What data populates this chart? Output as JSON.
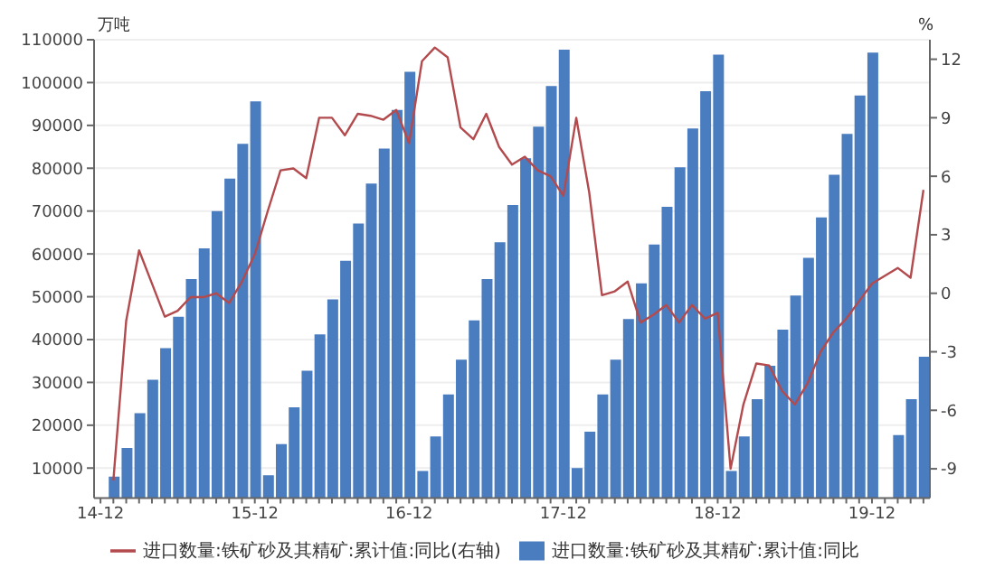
{
  "chart_data": {
    "type": "bar",
    "ylabel": "万吨",
    "y2label": "%",
    "categories": [
      "14-12",
      null,
      null,
      null,
      null,
      null,
      null,
      null,
      null,
      null,
      null,
      null,
      "15-12",
      null,
      null,
      null,
      null,
      null,
      null,
      null,
      null,
      null,
      null,
      null,
      "16-12",
      null,
      null,
      null,
      null,
      null,
      null,
      null,
      null,
      null,
      null,
      null,
      "17-12",
      null,
      null,
      null,
      null,
      null,
      null,
      null,
      null,
      null,
      null,
      null,
      "18-12",
      null,
      null,
      null,
      null,
      null,
      null,
      null,
      null,
      null,
      null,
      null,
      "19-12",
      null,
      null,
      null,
      null
    ],
    "series": [
      {
        "name": "进口数量:铁矿砂及其精矿:累计值:同比(右轴)",
        "type": "line",
        "axis": "y2",
        "color": "#b34a4d",
        "values": [
          null,
          -9.6,
          -1.4,
          2.2,
          0.5,
          -1.2,
          -0.9,
          -0.2,
          -0.2,
          0.0,
          -0.5,
          0.6,
          2.0,
          4.2,
          6.3,
          6.4,
          5.9,
          9.0,
          9.0,
          8.1,
          9.2,
          9.1,
          8.9,
          9.4,
          7.7,
          11.9,
          12.6,
          12.1,
          8.5,
          7.9,
          9.2,
          7.5,
          6.6,
          7.0,
          6.3,
          6.0,
          5.0,
          9.0,
          5.2,
          -0.1,
          0.1,
          0.6,
          -1.5,
          -1.1,
          -0.6,
          -1.5,
          -0.6,
          -1.3,
          -1.0,
          -9.0,
          -5.7,
          -3.6,
          -3.7,
          -5.0,
          -5.7,
          -4.6,
          -3.0,
          -2.0,
          -1.3,
          -0.4,
          0.5,
          null,
          1.3,
          0.8,
          5.3
        ]
      },
      {
        "name": "进口数量:铁矿砂及其精矿:累计值:同比",
        "color": "#4a7dc0",
        "values": [
          null,
          8000,
          14700,
          22800,
          30600,
          38000,
          45300,
          54100,
          61300,
          70000,
          77600,
          85700,
          95600,
          8300,
          15600,
          24200,
          32700,
          41200,
          49400,
          58400,
          67100,
          76400,
          84600,
          93600,
          102500,
          9300,
          17400,
          27200,
          35300,
          44500,
          54100,
          62700,
          71400,
          82300,
          89700,
          99200,
          107700,
          10000,
          18500,
          27200,
          35300,
          44800,
          53100,
          62200,
          71000,
          80200,
          89300,
          98000,
          106500,
          9300,
          17400,
          26100,
          33900,
          42300,
          50300,
          59100,
          68500,
          78500,
          88000,
          97000,
          107000,
          null,
          17700,
          26100,
          36000
        ]
      }
    ],
    "ylim": [
      3000,
      110000
    ],
    "yticks": [
      10000,
      20000,
      30000,
      40000,
      50000,
      60000,
      70000,
      80000,
      90000,
      100000,
      110000
    ],
    "y2lim": [
      -10.5,
      13
    ],
    "y2ticks": [
      -9,
      -6,
      -3,
      0,
      3,
      6,
      9,
      12
    ],
    "grid": "y",
    "legend": "bottom"
  }
}
